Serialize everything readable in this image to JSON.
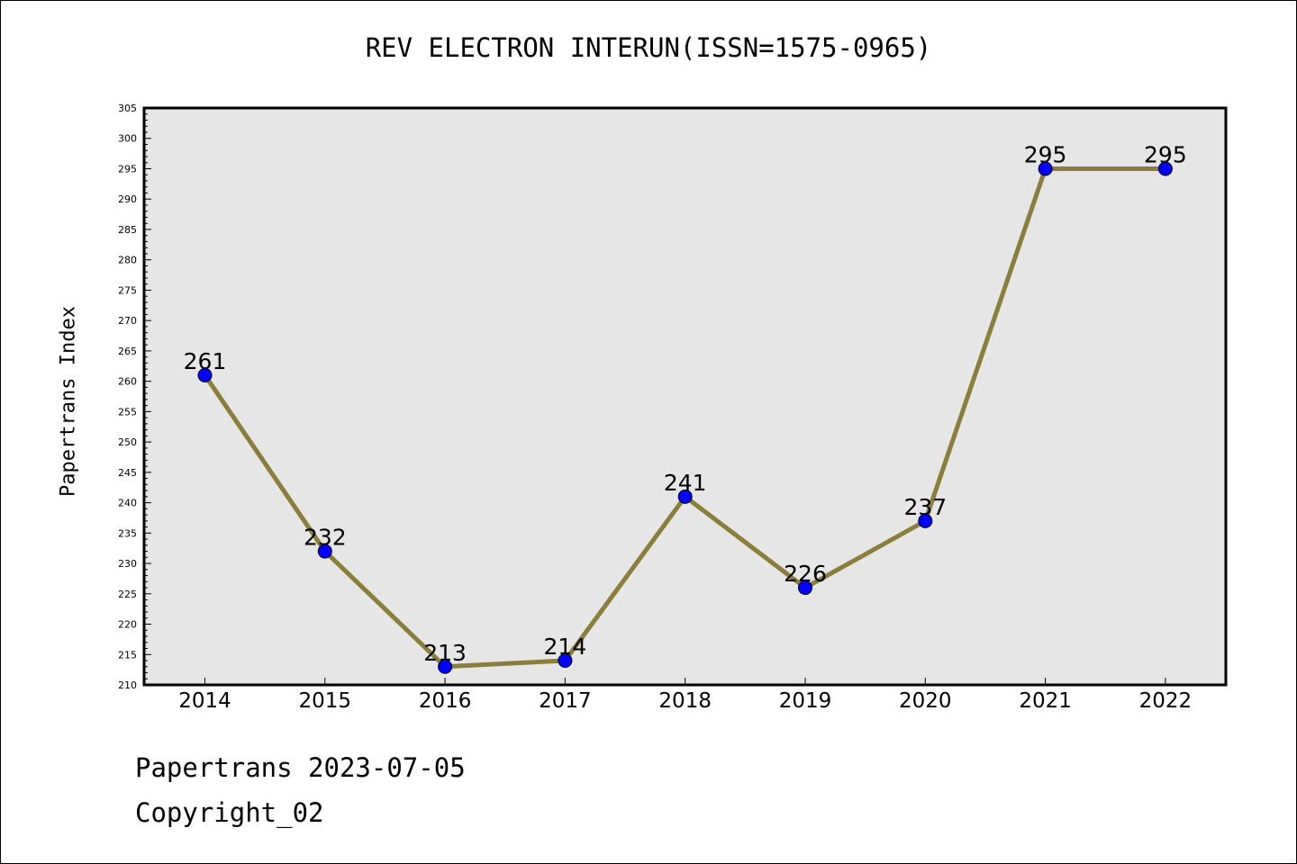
{
  "chart_data": {
    "type": "line",
    "title": "REV ELECTRON INTERUN(ISSN=1575-0965)",
    "xlabel": "",
    "ylabel": "Papertrans Index",
    "categories": [
      "2014",
      "2015",
      "2016",
      "2017",
      "2018",
      "2019",
      "2020",
      "2021",
      "2022"
    ],
    "values": [
      261,
      232,
      213,
      214,
      241,
      226,
      237,
      295,
      295
    ],
    "ylim": [
      210,
      305
    ],
    "yticks": [
      210,
      215,
      220,
      225,
      230,
      235,
      240,
      245,
      250,
      255,
      260,
      265,
      270,
      275,
      280,
      285,
      290,
      295,
      300,
      305
    ],
    "grid": false,
    "plot_background": "#e6e6e6",
    "line_color": "#8b7d3a",
    "marker_color": "#0000ff"
  },
  "footer": {
    "line1": "Papertrans 2023-07-05",
    "line2": "Copyright_02"
  }
}
